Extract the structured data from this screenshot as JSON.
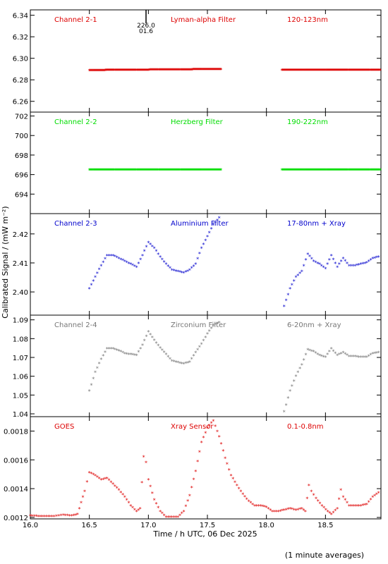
{
  "chart_data": [
    {
      "type": "scatter",
      "labels": [
        "Channel 2-1",
        "Lyman-alpha Filter",
        "120-123nm"
      ],
      "color": "#dd0000",
      "ylim": [
        6.25,
        6.345
      ],
      "yticks": [
        6.26,
        6.28,
        6.3,
        6.32,
        6.34
      ],
      "ytick_labels": [
        "6.26",
        "6.28",
        "6.30",
        "6.32",
        "6.34"
      ],
      "annotation": {
        "x": 16.98,
        "y": 6.336,
        "text": "226.0\n01.6"
      },
      "series": [
        {
          "kind": "flat",
          "x_start": 16.5,
          "x_end": 17.62,
          "y_start": 6.2885,
          "y_end": 6.2895
        },
        {
          "kind": "flat",
          "x_start": 18.13,
          "x_end": 18.97,
          "y_start": 6.2888,
          "y_end": 6.2888
        }
      ]
    },
    {
      "type": "scatter",
      "labels": [
        "Channel 2-2",
        "Herzberg Filter",
        "190-222nm"
      ],
      "color": "#00dd00",
      "ylim": [
        692,
        702.4
      ],
      "yticks": [
        694,
        696,
        698,
        700,
        702
      ],
      "ytick_labels": [
        "694",
        "696",
        "698",
        "700",
        "702"
      ],
      "series": [
        {
          "kind": "flat",
          "x_start": 16.5,
          "x_end": 17.62,
          "y_start": 696.45,
          "y_end": 696.45
        },
        {
          "kind": "flat",
          "x_start": 18.13,
          "x_end": 18.97,
          "y_start": 696.45,
          "y_end": 696.45
        }
      ]
    },
    {
      "type": "scatter",
      "labels": [
        "Channel 2-3",
        "Aluminium Filter",
        "17-80nm + Xray"
      ],
      "color": "#0000cc",
      "ylim": [
        2.392,
        2.427
      ],
      "yticks": [
        2.4,
        2.41,
        2.42
      ],
      "ytick_labels": [
        "2.40",
        "2.41",
        "2.42"
      ],
      "series": [
        {
          "kind": "curve",
          "points": [
            [
              16.5,
              2.401
            ],
            [
              16.55,
              2.405
            ],
            [
              16.6,
              2.409
            ],
            [
              16.65,
              2.4125
            ],
            [
              16.7,
              2.4125
            ],
            [
              16.75,
              2.4115
            ],
            [
              16.8,
              2.4105
            ],
            [
              16.85,
              2.4095
            ],
            [
              16.9,
              2.4085
            ],
            [
              16.95,
              2.4125
            ],
            [
              17.0,
              2.417
            ],
            [
              17.05,
              2.415
            ],
            [
              17.1,
              2.412
            ],
            [
              17.15,
              2.4095
            ],
            [
              17.2,
              2.4075
            ],
            [
              17.25,
              2.407
            ],
            [
              17.3,
              2.4065
            ],
            [
              17.35,
              2.4075
            ],
            [
              17.4,
              2.4095
            ],
            [
              17.45,
              2.415
            ],
            [
              17.5,
              2.419
            ],
            [
              17.55,
              2.423
            ],
            [
              17.6,
              2.4255
            ]
          ]
        },
        {
          "kind": "curve",
          "points": [
            [
              18.15,
              2.395
            ],
            [
              18.2,
              2.401
            ],
            [
              18.25,
              2.405
            ],
            [
              18.3,
              2.407
            ],
            [
              18.35,
              2.413
            ],
            [
              18.4,
              2.4105
            ],
            [
              18.45,
              2.4095
            ],
            [
              18.5,
              2.408
            ],
            [
              18.55,
              2.4125
            ],
            [
              18.6,
              2.4085
            ],
            [
              18.65,
              2.4115
            ],
            [
              18.7,
              2.409
            ],
            [
              18.75,
              2.409
            ],
            [
              18.8,
              2.4095
            ],
            [
              18.85,
              2.41
            ],
            [
              18.9,
              2.4115
            ],
            [
              18.95,
              2.412
            ]
          ]
        }
      ]
    },
    {
      "type": "scatter",
      "labels": [
        "Channel 2-4",
        "Zirconium Filter",
        "6-20nm + Xray"
      ],
      "color": "#777777",
      "ylim": [
        1.0385,
        1.0925
      ],
      "yticks": [
        1.04,
        1.05,
        1.06,
        1.07,
        1.08,
        1.09
      ],
      "ytick_labels": [
        "1.04",
        "1.05",
        "1.06",
        "1.07",
        "1.08",
        "1.09"
      ],
      "series": [
        {
          "kind": "curve",
          "points": [
            [
              16.5,
              1.052
            ],
            [
              16.55,
              1.062
            ],
            [
              16.6,
              1.069
            ],
            [
              16.65,
              1.0745
            ],
            [
              16.7,
              1.0745
            ],
            [
              16.75,
              1.0735
            ],
            [
              16.8,
              1.072
            ],
            [
              16.85,
              1.0715
            ],
            [
              16.9,
              1.071
            ],
            [
              16.95,
              1.0765
            ],
            [
              17.0,
              1.0835
            ],
            [
              17.05,
              1.079
            ],
            [
              17.1,
              1.075
            ],
            [
              17.15,
              1.0715
            ],
            [
              17.2,
              1.068
            ],
            [
              17.25,
              1.0672
            ],
            [
              17.3,
              1.0665
            ],
            [
              17.35,
              1.0675
            ],
            [
              17.4,
              1.0725
            ],
            [
              17.45,
              1.077
            ],
            [
              17.5,
              1.0825
            ],
            [
              17.55,
              1.087
            ],
            [
              17.6,
              1.0885
            ]
          ]
        },
        {
          "kind": "curve",
          "points": [
            [
              18.15,
              1.041
            ],
            [
              18.2,
              1.052
            ],
            [
              18.25,
              1.06
            ],
            [
              18.3,
              1.066
            ],
            [
              18.35,
              1.074
            ],
            [
              18.4,
              1.073
            ],
            [
              18.45,
              1.071
            ],
            [
              18.5,
              1.07
            ],
            [
              18.55,
              1.0745
            ],
            [
              18.6,
              1.071
            ],
            [
              18.65,
              1.0725
            ],
            [
              18.7,
              1.0705
            ],
            [
              18.75,
              1.0705
            ],
            [
              18.8,
              1.07
            ],
            [
              18.85,
              1.07
            ],
            [
              18.9,
              1.072
            ],
            [
              18.95,
              1.0725
            ]
          ]
        }
      ]
    },
    {
      "type": "scatter",
      "labels": [
        "GOES",
        "Xray Sensor",
        "0.1-0.8nm"
      ],
      "color": "#dd0000",
      "ylim": [
        0.00119,
        0.0019
      ],
      "yticks": [
        0.0012,
        0.0014,
        0.0016,
        0.0018
      ],
      "ytick_labels": [
        "0.0012",
        "0.0014",
        "0.0016",
        "0.0018"
      ],
      "series": [
        {
          "kind": "curve",
          "points": [
            [
              16.0,
              0.00121
            ],
            [
              16.1,
              0.001205
            ],
            [
              16.2,
              0.001205
            ],
            [
              16.28,
              0.001215
            ],
            [
              16.35,
              0.00121
            ],
            [
              16.4,
              0.00122
            ],
            [
              16.43,
              0.0013
            ],
            [
              16.46,
              0.00138
            ],
            [
              16.5,
              0.00151
            ],
            [
              16.55,
              0.00149
            ],
            [
              16.6,
              0.00146
            ],
            [
              16.65,
              0.00147
            ],
            [
              16.7,
              0.00143
            ],
            [
              16.75,
              0.00139
            ],
            [
              16.8,
              0.00134
            ],
            [
              16.85,
              0.00128
            ],
            [
              16.9,
              0.00124
            ],
            [
              16.93,
              0.00126
            ],
            [
              16.96,
              0.00162
            ],
            [
              16.98,
              0.00158
            ],
            [
              17.0,
              0.00146
            ],
            [
              17.05,
              0.00132
            ],
            [
              17.1,
              0.00124
            ],
            [
              17.15,
              0.0012
            ],
            [
              17.2,
              0.0012
            ],
            [
              17.25,
              0.0012
            ],
            [
              17.3,
              0.00124
            ],
            [
              17.35,
              0.00135
            ],
            [
              17.4,
              0.00152
            ],
            [
              17.45,
              0.00172
            ],
            [
              17.5,
              0.00182
            ],
            [
              17.55,
              0.00187
            ],
            [
              17.6,
              0.00176
            ],
            [
              17.65,
              0.00161
            ],
            [
              17.7,
              0.00149
            ],
            [
              17.75,
              0.00142
            ],
            [
              17.8,
              0.00136
            ],
            [
              17.85,
              0.00131
            ],
            [
              17.9,
              0.00128
            ],
            [
              17.95,
              0.00128
            ],
            [
              18.0,
              0.00127
            ],
            [
              18.05,
              0.00124
            ],
            [
              18.1,
              0.00124
            ],
            [
              18.15,
              0.00125
            ],
            [
              18.2,
              0.00126
            ],
            [
              18.25,
              0.00125
            ],
            [
              18.3,
              0.00126
            ],
            [
              18.33,
              0.00124
            ],
            [
              18.36,
              0.00142
            ],
            [
              18.38,
              0.00138
            ],
            [
              18.42,
              0.00133
            ],
            [
              18.47,
              0.00128
            ],
            [
              18.52,
              0.00124
            ],
            [
              18.55,
              0.00122
            ],
            [
              18.6,
              0.00126
            ],
            [
              18.63,
              0.00139
            ],
            [
              18.65,
              0.00134
            ],
            [
              18.7,
              0.00128
            ],
            [
              18.75,
              0.00128
            ],
            [
              18.8,
              0.00128
            ],
            [
              18.85,
              0.00129
            ],
            [
              18.9,
              0.00134
            ],
            [
              18.95,
              0.00137
            ]
          ]
        }
      ]
    }
  ],
  "x_axis": {
    "xlim": [
      16.0,
      18.97
    ],
    "ticks": [
      16.0,
      16.5,
      17.0,
      17.5,
      18.0,
      18.5
    ],
    "tick_labels": [
      "16.0",
      "16.5",
      "17.0",
      "17.5",
      "18.0",
      "18.5"
    ],
    "label": "Time / h UTC, 06 Dec 2025"
  },
  "ylabel": "Calibrated Signal / (mW m⁻²)",
  "footnote": "(1 minute averages)"
}
